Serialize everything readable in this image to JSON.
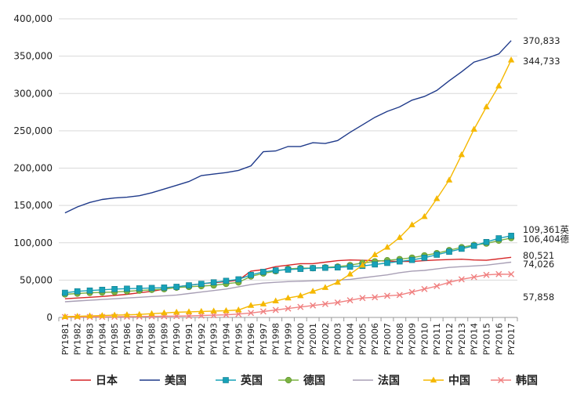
{
  "chart_data": {
    "type": "line",
    "title": "",
    "xlabel": "",
    "ylabel": "",
    "ylim": [
      0,
      400000
    ],
    "yticks": [
      0,
      50000,
      100000,
      150000,
      200000,
      250000,
      300000,
      350000,
      400000
    ],
    "ytick_labels": [
      "0",
      "50,000",
      "100,000",
      "150,000",
      "200,000",
      "250,000",
      "300,000",
      "350,000",
      "400,000"
    ],
    "grid": true,
    "legend_position": "bottom",
    "categories": [
      "PY1981",
      "PY1982",
      "PY1983",
      "PY1984",
      "PY1985",
      "PY1986",
      "PY1987",
      "PY1988",
      "PY1989",
      "PY1990",
      "PY1991",
      "PY1992",
      "PY1993",
      "PY1994",
      "PY1995",
      "PY1996",
      "PY1997",
      "PY1998",
      "PY1999",
      "PY2000",
      "PY2001",
      "PY2002",
      "PY2003",
      "PY2004",
      "PY2005",
      "PY2006",
      "PY2007",
      "PY2008",
      "PY2009",
      "PY2010",
      "PY2011",
      "PY2012",
      "PY2013",
      "PY2014",
      "PY2015",
      "PY2016",
      "PY2017"
    ],
    "series": [
      {
        "name": "日本",
        "color": "#d62728",
        "marker": "none",
        "values": [
          25000,
          26000,
          27000,
          28000,
          29500,
          31000,
          33000,
          35000,
          38000,
          41000,
          43000,
          45000,
          46500,
          48000,
          50000,
          62000,
          64000,
          68000,
          70000,
          72000,
          72000,
          74000,
          76000,
          77000,
          76500,
          76000,
          75500,
          75000,
          75000,
          76000,
          77000,
          77500,
          78000,
          77000,
          76500,
          78500,
          80521
        ]
      },
      {
        "name": "美国",
        "color": "#1f3a8a",
        "marker": "none",
        "values": [
          140000,
          148000,
          154000,
          158000,
          160000,
          161000,
          163000,
          167000,
          172000,
          177000,
          182000,
          190000,
          192000,
          194000,
          197000,
          203000,
          222000,
          223000,
          229000,
          229000,
          234000,
          233000,
          237000,
          248000,
          258000,
          268000,
          276000,
          282000,
          291000,
          296000,
          304000,
          317000,
          329000,
          342000,
          347000,
          353000,
          370833
        ]
      },
      {
        "name": "英国",
        "color": "#17a2b8",
        "marker": "square",
        "values": [
          33000,
          35000,
          36000,
          37000,
          38000,
          38500,
          39000,
          39500,
          40000,
          41000,
          43000,
          45000,
          47000,
          49000,
          51000,
          57000,
          61000,
          63000,
          64000,
          65000,
          66000,
          66500,
          67000,
          68000,
          69000,
          71000,
          73000,
          75000,
          77000,
          80000,
          84000,
          88000,
          92000,
          96000,
          101000,
          106000,
          109361
        ]
      },
      {
        "name": "德国",
        "color": "#7cb342",
        "marker": "circle",
        "values": [
          31000,
          32000,
          33000,
          33500,
          34000,
          35000,
          36000,
          37000,
          38000,
          40000,
          41000,
          42000,
          43000,
          45000,
          47000,
          55000,
          59000,
          62000,
          65000,
          66000,
          66000,
          67000,
          68000,
          70000,
          73000,
          75000,
          76500,
          78000,
          80000,
          83000,
          86000,
          90000,
          94000,
          97000,
          99000,
          103000,
          106404
        ]
      },
      {
        "name": "法国",
        "color": "#a89fb5",
        "marker": "none",
        "values": [
          21000,
          22000,
          23000,
          24000,
          25000,
          26000,
          27000,
          28000,
          29000,
          30000,
          32000,
          34000,
          36000,
          38000,
          41000,
          44000,
          46000,
          47000,
          48000,
          48500,
          49000,
          49500,
          50000,
          51000,
          53000,
          55000,
          57000,
          60000,
          62000,
          63000,
          65000,
          67000,
          68000,
          69000,
          70000,
          72000,
          74026
        ]
      },
      {
        "name": "中国",
        "color": "#f5b800",
        "marker": "triangle",
        "values": [
          1000,
          1500,
          2000,
          2500,
          3000,
          3500,
          4000,
          5000,
          6000,
          7000,
          7500,
          8000,
          8500,
          9000,
          10000,
          16000,
          18000,
          22000,
          26000,
          29000,
          35000,
          40000,
          47000,
          58000,
          70000,
          84000,
          94000,
          107000,
          124000,
          135000,
          159000,
          184000,
          218000,
          252000,
          282000,
          310000,
          344733
        ]
      },
      {
        "name": "韩国",
        "color": "#f08080",
        "marker": "x",
        "values": [
          500,
          600,
          700,
          800,
          900,
          1000,
          1200,
          1400,
          1600,
          1800,
          2000,
          2500,
          3000,
          3500,
          4500,
          6000,
          8000,
          10000,
          12000,
          14000,
          16000,
          18000,
          20000,
          23000,
          26000,
          27000,
          29000,
          30000,
          34000,
          38000,
          42000,
          47000,
          51000,
          54000,
          57000,
          58000,
          57858
        ]
      }
    ],
    "end_labels": [
      {
        "series": "美国",
        "text": "370,833"
      },
      {
        "series": "中国",
        "text": "344,733"
      },
      {
        "series": "英国",
        "text": "109,361英"
      },
      {
        "series": "德国",
        "text": "106,404德"
      },
      {
        "series": "日本",
        "text": "80,521"
      },
      {
        "series": "法国",
        "text": "74,026"
      },
      {
        "series": "韩国",
        "text": "57,858"
      }
    ]
  }
}
